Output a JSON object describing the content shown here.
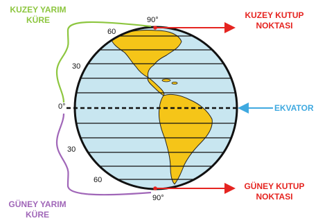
{
  "labels": {
    "north_hemisphere": [
      "KUZEY YARIM",
      "KÜRE"
    ],
    "south_hemisphere": [
      "GÜNEY YARIM",
      "KÜRE"
    ],
    "north_pole": [
      "KUZEY KUTUP",
      "NOKTASI"
    ],
    "south_pole": [
      "GÜNEY KUTUP",
      "NOKTASI"
    ],
    "equator": "EKVATOR"
  },
  "degrees": {
    "top": "90°",
    "n60": "60",
    "n30": "30",
    "zero": "0°",
    "s30": "30",
    "s60": "60",
    "bottom": "90°"
  },
  "colors": {
    "ocean": "#c8e6f0",
    "land": "#f5c518",
    "north_brace": "#8dc63f",
    "south_brace": "#a066b8",
    "pole_arrow": "#e52420",
    "equator_arrow": "#3fa9e0"
  }
}
